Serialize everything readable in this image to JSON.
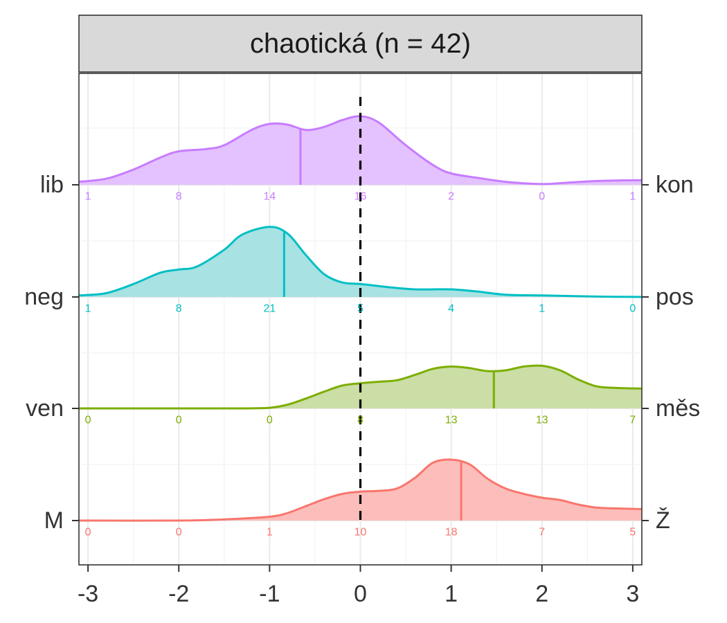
{
  "chart_data": {
    "type": "ridgeline",
    "title": "chaotická (n = 42)",
    "xlim": [
      -3.1,
      3.1
    ],
    "x_ticks": [
      -3,
      -2,
      -1,
      0,
      1,
      2,
      3
    ],
    "x_tick_labels": [
      "-3",
      "-2",
      "-1",
      "0",
      "1",
      "2",
      "3"
    ],
    "reference_line_x": 0,
    "grid": true,
    "series": [
      {
        "left_label": "lib",
        "right_label": "kon",
        "color": "#C77CFF",
        "fill": "#E3BEFF",
        "mean": -0.66,
        "counts_x": [
          -3,
          -2,
          -1,
          0,
          1,
          2,
          3
        ],
        "counts": [
          "1",
          "8",
          "14",
          "16",
          "2",
          "0",
          "1"
        ],
        "density_x": [
          -3.1,
          -2.8,
          -2.5,
          -2.2,
          -2.0,
          -1.7,
          -1.5,
          -1.2,
          -1.0,
          -0.8,
          -0.6,
          -0.4,
          -0.2,
          0.0,
          0.2,
          0.5,
          0.8,
          1.0,
          1.3,
          1.6,
          2.0,
          2.3,
          2.6,
          3.0,
          3.1
        ],
        "density_y": [
          0.04,
          0.08,
          0.2,
          0.36,
          0.44,
          0.47,
          0.52,
          0.72,
          0.8,
          0.79,
          0.72,
          0.76,
          0.85,
          0.9,
          0.82,
          0.52,
          0.26,
          0.15,
          0.09,
          0.04,
          0.01,
          0.03,
          0.05,
          0.06,
          0.06
        ]
      },
      {
        "left_label": "neg",
        "right_label": "pos",
        "color": "#00BFC4",
        "fill": "#A3E0E1",
        "mean": -0.84,
        "counts_x": [
          -3,
          -2,
          -1,
          0,
          1,
          2,
          3
        ],
        "counts": [
          "1",
          "8",
          "21",
          "5",
          "4",
          "1",
          "0"
        ],
        "density_x": [
          -3.1,
          -2.8,
          -2.5,
          -2.2,
          -2.0,
          -1.8,
          -1.5,
          -1.3,
          -1.0,
          -0.8,
          -0.6,
          -0.4,
          -0.2,
          0.0,
          0.3,
          0.6,
          1.0,
          1.3,
          1.6,
          2.0,
          2.4,
          2.8,
          3.1
        ],
        "density_y": [
          0.02,
          0.05,
          0.17,
          0.32,
          0.36,
          0.4,
          0.62,
          0.82,
          0.92,
          0.83,
          0.55,
          0.3,
          0.19,
          0.17,
          0.13,
          0.1,
          0.1,
          0.07,
          0.03,
          0.02,
          0.01,
          0.003,
          0.0
        ]
      },
      {
        "left_label": "ven",
        "right_label": "měs",
        "color": "#7CAE00",
        "fill": "#C7DCA1",
        "mean": 1.47,
        "counts_x": [
          -3,
          -2,
          -1,
          0,
          1,
          2,
          3
        ],
        "counts": [
          "0",
          "0",
          "0",
          "8",
          "13",
          "13",
          "7"
        ],
        "density_x": [
          -3.1,
          -2.0,
          -1.3,
          -1.0,
          -0.8,
          -0.6,
          -0.4,
          -0.2,
          0.0,
          0.2,
          0.4,
          0.6,
          0.8,
          1.0,
          1.2,
          1.4,
          1.6,
          1.8,
          2.0,
          2.2,
          2.4,
          2.6,
          2.8,
          3.1
        ],
        "density_y": [
          0.0,
          0.0,
          0.0,
          0.008,
          0.05,
          0.13,
          0.22,
          0.3,
          0.33,
          0.35,
          0.37,
          0.44,
          0.52,
          0.55,
          0.53,
          0.49,
          0.5,
          0.55,
          0.56,
          0.5,
          0.38,
          0.29,
          0.27,
          0.26
        ]
      },
      {
        "left_label": "M",
        "right_label": "Ž",
        "color": "#F8766D",
        "fill": "#FCBBB6",
        "mean": 1.11,
        "counts_x": [
          -3,
          -2,
          -1,
          0,
          1,
          2,
          3
        ],
        "counts": [
          "0",
          "0",
          "1",
          "10",
          "18",
          "7",
          "5"
        ],
        "density_x": [
          -3.1,
          -2.0,
          -1.5,
          -1.0,
          -0.8,
          -0.6,
          -0.4,
          -0.2,
          0.0,
          0.2,
          0.4,
          0.6,
          0.8,
          1.0,
          1.2,
          1.4,
          1.6,
          1.8,
          2.0,
          2.2,
          2.4,
          2.6,
          2.8,
          3.1
        ],
        "density_y": [
          0.0,
          0.0,
          0.015,
          0.05,
          0.1,
          0.19,
          0.28,
          0.35,
          0.38,
          0.39,
          0.42,
          0.56,
          0.76,
          0.8,
          0.74,
          0.55,
          0.42,
          0.35,
          0.3,
          0.27,
          0.21,
          0.17,
          0.16,
          0.15
        ]
      }
    ]
  }
}
